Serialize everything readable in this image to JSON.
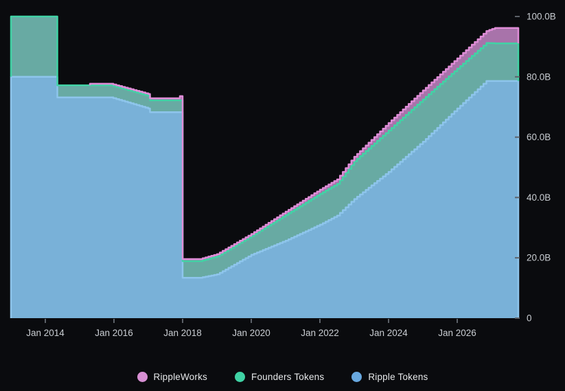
{
  "chart_data": {
    "type": "area",
    "stacked": true,
    "title": "",
    "units": "B (billions of tokens)",
    "x_axis": {
      "range_years": [
        2013.0,
        2027.78
      ],
      "ticks": [
        {
          "year": 2014,
          "label": "Jan 2014"
        },
        {
          "year": 2016,
          "label": "Jan 2016"
        },
        {
          "year": 2018,
          "label": "Jan 2018"
        },
        {
          "year": 2020,
          "label": "Jan 2020"
        },
        {
          "year": 2022,
          "label": "Jan 2022"
        },
        {
          "year": 2024,
          "label": "Jan 2024"
        },
        {
          "year": 2026,
          "label": "Jan 2026"
        }
      ]
    },
    "y_axis": {
      "range": [
        0,
        100
      ],
      "ticks": [
        {
          "value": 0,
          "label": "0"
        },
        {
          "value": 20,
          "label": "20.0B"
        },
        {
          "value": 40,
          "label": "40.0B"
        },
        {
          "value": 60,
          "label": "60.0B"
        },
        {
          "value": 80,
          "label": "80.0B"
        },
        {
          "value": 100,
          "label": "100.0B"
        }
      ]
    },
    "step_interval_months": 1,
    "series": [
      {
        "key": "ripple",
        "name": "Ripple Tokens",
        "fill": "#79b1d8",
        "line": "#8ec5ec",
        "dot": "#68a8df"
      },
      {
        "key": "founders",
        "name": "Founders Tokens",
        "fill": "#68aaa3",
        "line": "#41d3a5",
        "dot": "#3fd2a4"
      },
      {
        "key": "rippleworks",
        "name": "RippleWorks",
        "fill": "#a873aa",
        "line": "#df8dd7",
        "dot": "#d78fd3"
      }
    ],
    "points": [
      {
        "t": 2013.0,
        "v": [
          80.0,
          20.0,
          0.0
        ]
      },
      {
        "t": 2014.35,
        "v": [
          80.0,
          20.0,
          0.0
        ]
      },
      {
        "t": 2014.35,
        "v": [
          73.2,
          4.0,
          0.0
        ]
      },
      {
        "t": 2015.3,
        "v": [
          73.2,
          4.0,
          0.0
        ]
      },
      {
        "t": 2015.3,
        "v": [
          73.2,
          4.0,
          0.5
        ]
      },
      {
        "t": 2015.9,
        "v": [
          73.2,
          4.0,
          0.5
        ]
      },
      {
        "t": 2017.0,
        "v": [
          69.5,
          4.2,
          0.6
        ]
      },
      {
        "t": 2017.05,
        "v": [
          68.3,
          3.9,
          0.7
        ]
      },
      {
        "t": 2017.9,
        "v": [
          68.3,
          3.9,
          0.7
        ]
      },
      {
        "t": 2017.92,
        "v": [
          68.3,
          3.9,
          1.4
        ]
      },
      {
        "t": 2018.0,
        "v": [
          68.3,
          3.9,
          1.4
        ]
      },
      {
        "t": 2018.0,
        "v": [
          13.4,
          5.5,
          0.7
        ]
      },
      {
        "t": 2018.5,
        "v": [
          13.4,
          5.5,
          0.7
        ]
      },
      {
        "t": 2019.0,
        "v": [
          14.5,
          6.0,
          0.7
        ]
      },
      {
        "t": 2020.0,
        "v": [
          21.0,
          6.2,
          0.7
        ]
      },
      {
        "t": 2021.0,
        "v": [
          25.7,
          8.5,
          1.1
        ]
      },
      {
        "t": 2022.0,
        "v": [
          31.0,
          10.2,
          1.4
        ]
      },
      {
        "t": 2022.5,
        "v": [
          34.0,
          10.5,
          1.5
        ]
      },
      {
        "t": 2023.0,
        "v": [
          39.5,
          12.5,
          1.5
        ]
      },
      {
        "t": 2024.0,
        "v": [
          48.5,
          13.7,
          2.5
        ]
      },
      {
        "t": 2025.0,
        "v": [
          58.5,
          14.0,
          3.0
        ]
      },
      {
        "t": 2026.0,
        "v": [
          69.5,
          13.2,
          3.4
        ]
      },
      {
        "t": 2026.85,
        "v": [
          78.6,
          12.6,
          4.0
        ]
      },
      {
        "t": 2027.1,
        "v": [
          78.6,
          12.5,
          5.1
        ]
      },
      {
        "t": 2027.78,
        "v": [
          78.6,
          12.5,
          5.1
        ]
      }
    ],
    "legend": [
      {
        "key": "rippleworks",
        "label": "RippleWorks"
      },
      {
        "key": "founders",
        "label": "Founders Tokens"
      },
      {
        "key": "ripple",
        "label": "Ripple Tokens"
      }
    ],
    "colors": {
      "background": "#0a0b0e",
      "axis_text": "#c9cdd2",
      "tick_mark": "#5c6168",
      "legend_text": "#e6e8ea"
    }
  }
}
